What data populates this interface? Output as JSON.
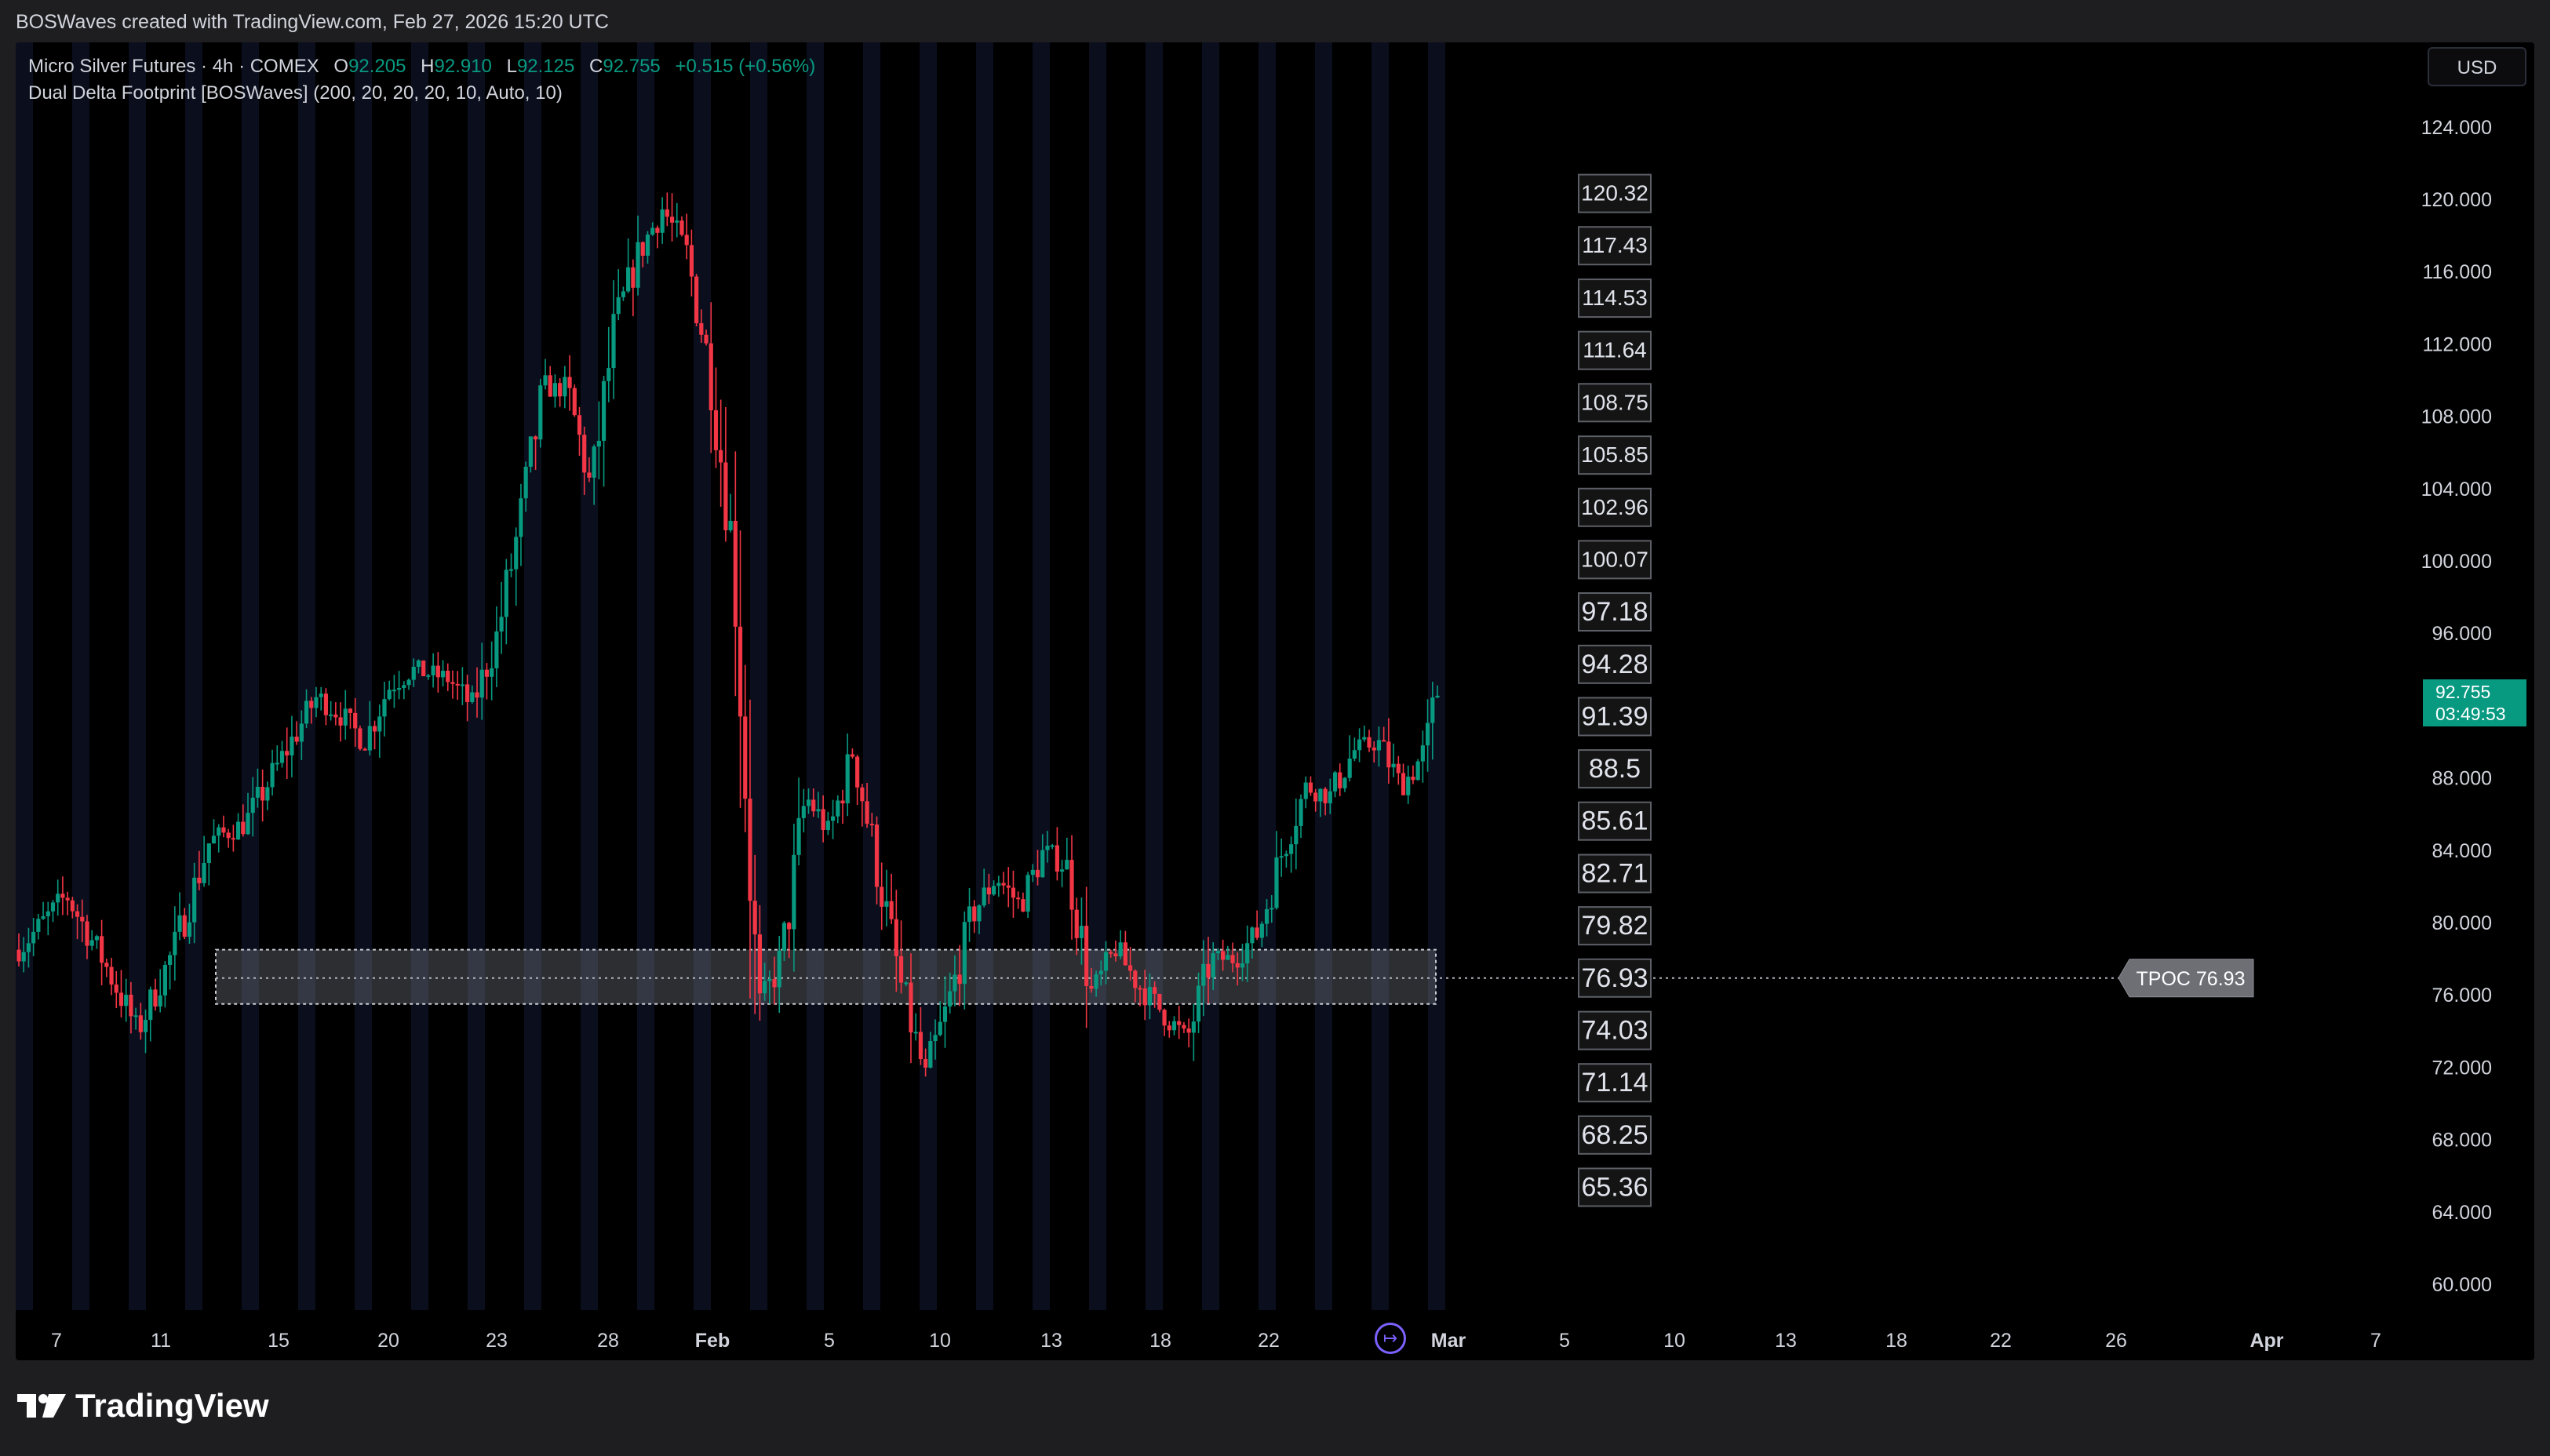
{
  "caption": "BOSWaves created with TradingView.com, Feb 27, 2026 15:20 UTC",
  "legend": {
    "symbol": "Micro Silver Futures · 4h · COMEX",
    "open_label": "O",
    "open": "92.205",
    "high_label": "H",
    "high": "92.910",
    "low_label": "L",
    "low": "92.125",
    "close_label": "C",
    "close": "92.755",
    "change": "+0.515 (+0.56%)",
    "indicator": "Dual Delta Footprint [BOSWaves] (200, 20, 20, 20, 10, Auto, 10)"
  },
  "currency": "USD",
  "last_price": {
    "price": "92.755",
    "countdown": "03:49:53"
  },
  "brand": "TradingView",
  "colors": {
    "up": "#089981",
    "down": "#f23645",
    "background": "#000000",
    "stripe": "#0b0f1d",
    "tpoc_box": "#8a8f99",
    "label_bg": "#141414"
  },
  "icons": {
    "replay": "replay-arrow-icon",
    "logo": "tradingview-logo-icon"
  },
  "chart_data": {
    "type": "candlestick",
    "timeframe": "4h",
    "x_tick_labels": [
      "7",
      "11",
      "15",
      "20",
      "23",
      "28",
      "Feb",
      "5",
      "10",
      "13",
      "18",
      "22",
      "Mar",
      "5",
      "10",
      "13",
      "18",
      "22",
      "26",
      "Apr",
      "7"
    ],
    "y_tick_labels": [
      "124.000",
      "120.000",
      "116.000",
      "112.000",
      "108.000",
      "104.000",
      "100.000",
      "96.000",
      "92.000",
      "88.000",
      "84.000",
      "80.000",
      "76.000",
      "72.000",
      "68.000",
      "64.000",
      "60.000"
    ],
    "y_range": [
      56,
      128
    ],
    "y_ticks": [
      124,
      120,
      116,
      112,
      108,
      104,
      100,
      96,
      92,
      88,
      84,
      80,
      76,
      72,
      68,
      64,
      60
    ],
    "price_path": [
      [
        0,
        78.5
      ],
      [
        4,
        81.5
      ],
      [
        7,
        78.0
      ],
      [
        10,
        74.0
      ],
      [
        13,
        78.5
      ],
      [
        16,
        84.5
      ],
      [
        19,
        85.5
      ],
      [
        22,
        89.0
      ],
      [
        25,
        92.5
      ],
      [
        27,
        91.5
      ],
      [
        29,
        90.0
      ],
      [
        31,
        93.0
      ],
      [
        33,
        94.0
      ],
      [
        36,
        93.5
      ],
      [
        38,
        92.0
      ],
      [
        40,
        95.5
      ],
      [
        42,
        102.0
      ],
      [
        44,
        109.5
      ],
      [
        46,
        109.5
      ],
      [
        48,
        104.0
      ],
      [
        50,
        113.0
      ],
      [
        52,
        117.0
      ],
      [
        54,
        119.5
      ],
      [
        56,
        117.0
      ],
      [
        58,
        110.5
      ],
      [
        60,
        100.0
      ],
      [
        62,
        75.0
      ],
      [
        64,
        78.0
      ],
      [
        66,
        87.0
      ],
      [
        68,
        85.0
      ],
      [
        70,
        89.5
      ],
      [
        72,
        83.0
      ],
      [
        74,
        76.5
      ],
      [
        76,
        71.5
      ],
      [
        78,
        75.5
      ],
      [
        80,
        80.5
      ],
      [
        82,
        82.5
      ],
      [
        84,
        81.0
      ],
      [
        86,
        84.0
      ],
      [
        88,
        83.0
      ],
      [
        90,
        76.0
      ],
      [
        92,
        78.5
      ],
      [
        94,
        76.5
      ],
      [
        96,
        75.0
      ],
      [
        98,
        73.5
      ],
      [
        100,
        78.0
      ],
      [
        102,
        78.0
      ],
      [
        104,
        79.5
      ],
      [
        106,
        84.0
      ],
      [
        108,
        87.5
      ],
      [
        110,
        87.0
      ],
      [
        112,
        89.5
      ],
      [
        114,
        90.0
      ],
      [
        116,
        87.5
      ],
      [
        118,
        89.5
      ],
      [
        119,
        92.8
      ]
    ],
    "price_levels": [
      {
        "label": "120.32",
        "value": 120.32
      },
      {
        "label": "117.43",
        "value": 117.43
      },
      {
        "label": "114.53",
        "value": 114.53
      },
      {
        "label": "111.64",
        "value": 111.64
      },
      {
        "label": "108.75",
        "value": 108.75
      },
      {
        "label": "105.85",
        "value": 105.85
      },
      {
        "label": "102.96",
        "value": 102.96
      },
      {
        "label": "100.07",
        "value": 100.07
      },
      {
        "label": "97.18",
        "value": 97.18
      },
      {
        "label": "94.28",
        "value": 94.28
      },
      {
        "label": "91.39",
        "value": 91.39
      },
      {
        "label": "88.5",
        "value": 88.5
      },
      {
        "label": "85.61",
        "value": 85.61
      },
      {
        "label": "82.71",
        "value": 82.71
      },
      {
        "label": "79.82",
        "value": 79.82
      },
      {
        "label": "76.93",
        "value": 76.93
      },
      {
        "label": "74.03",
        "value": 74.03
      },
      {
        "label": "71.14",
        "value": 71.14
      },
      {
        "label": "68.25",
        "value": 68.25
      },
      {
        "label": "65.36",
        "value": 65.36
      }
    ],
    "tpoc": {
      "label": "TPOC 76.93",
      "value": 76.93,
      "zone": [
        75.5,
        78.5
      ]
    },
    "grid": false
  }
}
